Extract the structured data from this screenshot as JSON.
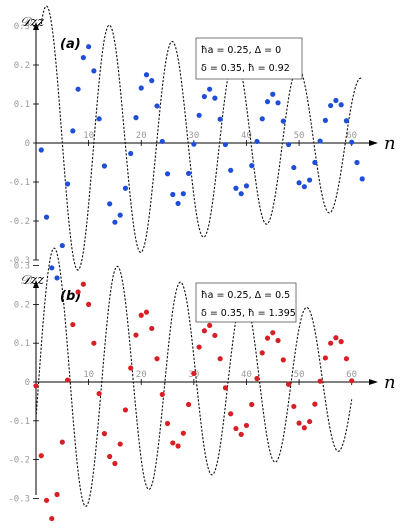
{
  "chart_data": [
    {
      "type": "scatter",
      "panel_label": "(a)",
      "ylabel": "𝒟zz",
      "xlabel": "n",
      "legend_line1": "ħa = 0.25,   Δ = 0",
      "legend_line2": "δ = 0.35,   ħ = 0.92",
      "point_color": "#1f4fd8",
      "xlim": [
        0,
        65
      ],
      "ylim": [
        -0.37,
        0.36
      ],
      "xticks": [
        10,
        20,
        30,
        40,
        50,
        60
      ],
      "yticks": [
        -0.3,
        -0.2,
        -0.1,
        0,
        0.1,
        0.2,
        0.3
      ],
      "ytick_labels": [
        "-0.3",
        "-0.2",
        "-0.1",
        "0",
        "0.1",
        "0.2",
        "0.3"
      ],
      "curve": {
        "amplitude": 0.36,
        "period": 11.95,
        "phase_n": 8.0,
        "decay": 0.0125
      },
      "x": [
        1,
        2,
        3,
        4,
        5,
        6,
        7,
        8,
        9,
        10,
        11,
        12,
        13,
        14,
        15,
        16,
        17,
        18,
        19,
        20,
        21,
        22,
        23,
        24,
        25,
        26,
        27,
        28,
        29,
        30,
        31,
        32,
        33,
        34,
        35,
        36,
        37,
        38,
        39,
        40,
        41,
        42,
        43,
        44,
        45,
        46,
        47,
        48,
        49,
        50,
        51,
        52,
        53,
        54,
        55,
        56,
        57,
        58,
        59,
        60,
        61,
        62
      ],
      "y": [
        -0.018,
        -0.19,
        -0.32,
        -0.346,
        -0.263,
        -0.105,
        0.031,
        0.138,
        0.219,
        0.247,
        0.185,
        0.062,
        -0.059,
        -0.156,
        -0.203,
        -0.185,
        -0.116,
        -0.027,
        0.065,
        0.141,
        0.175,
        0.16,
        0.095,
        0.004,
        -0.079,
        -0.132,
        -0.155,
        -0.13,
        -0.078,
        -0.003,
        0.071,
        0.119,
        0.138,
        0.115,
        0.061,
        -0.004,
        -0.07,
        -0.116,
        -0.13,
        -0.11,
        -0.058,
        0.004,
        0.062,
        0.106,
        0.125,
        0.103,
        0.056,
        -0.004,
        -0.063,
        -0.102,
        -0.112,
        -0.095,
        -0.05,
        0.005,
        0.058,
        0.096,
        0.109,
        0.098,
        0.057,
        0.002,
        -0.05,
        -0.092
      ]
    },
    {
      "type": "scatter",
      "panel_label": "(b)",
      "ylabel": "𝒟zz",
      "xlabel": "n",
      "legend_line1": "ħa = 0.25,   Δ = 0.5",
      "legend_line2": "δ = 0.35,   ħ = 1.395",
      "point_color": "#d81f26",
      "xlim": [
        0,
        65
      ],
      "ylim": [
        -0.37,
        0.36
      ],
      "xticks": [
        10,
        20,
        30,
        40,
        50,
        60
      ],
      "yticks": [
        -0.3,
        -0.2,
        -0.1,
        0,
        0.1,
        0.2,
        0.3
      ],
      "ytick_labels": [
        "-0.3",
        "-0.2",
        "-0.1",
        "0",
        "0.1",
        "0.2",
        "0.3"
      ],
      "curve": {
        "amplitude": 0.36,
        "period": 12.0,
        "phase_n": 9.5,
        "decay": 0.0122
      },
      "x": [
        0,
        1,
        2,
        3,
        4,
        5,
        6,
        7,
        8,
        9,
        10,
        11,
        12,
        13,
        14,
        15,
        16,
        17,
        18,
        19,
        20,
        21,
        22,
        23,
        24,
        25,
        26,
        27,
        28,
        29,
        30,
        31,
        32,
        33,
        34,
        35,
        36,
        37,
        38,
        39,
        40,
        41,
        42,
        43,
        44,
        45,
        46,
        47,
        48,
        49,
        50,
        51,
        52,
        53,
        54,
        55,
        56,
        57,
        58,
        59,
        60
      ],
      "y": [
        -0.01,
        -0.19,
        -0.305,
        -0.352,
        -0.29,
        -0.155,
        0.005,
        0.148,
        0.232,
        0.252,
        0.2,
        0.1,
        -0.03,
        -0.133,
        -0.192,
        -0.21,
        -0.16,
        -0.072,
        0.036,
        0.121,
        0.172,
        0.18,
        0.138,
        0.06,
        -0.032,
        -0.107,
        -0.157,
        -0.165,
        -0.132,
        -0.058,
        0.022,
        0.09,
        0.132,
        0.146,
        0.12,
        0.06,
        -0.015,
        -0.082,
        -0.12,
        -0.135,
        -0.112,
        -0.058,
        0.009,
        0.075,
        0.113,
        0.127,
        0.107,
        0.057,
        -0.006,
        -0.063,
        -0.106,
        -0.118,
        -0.102,
        -0.057,
        0.002,
        0.062,
        0.1,
        0.114,
        0.104,
        0.06,
        0.003
      ]
    }
  ]
}
